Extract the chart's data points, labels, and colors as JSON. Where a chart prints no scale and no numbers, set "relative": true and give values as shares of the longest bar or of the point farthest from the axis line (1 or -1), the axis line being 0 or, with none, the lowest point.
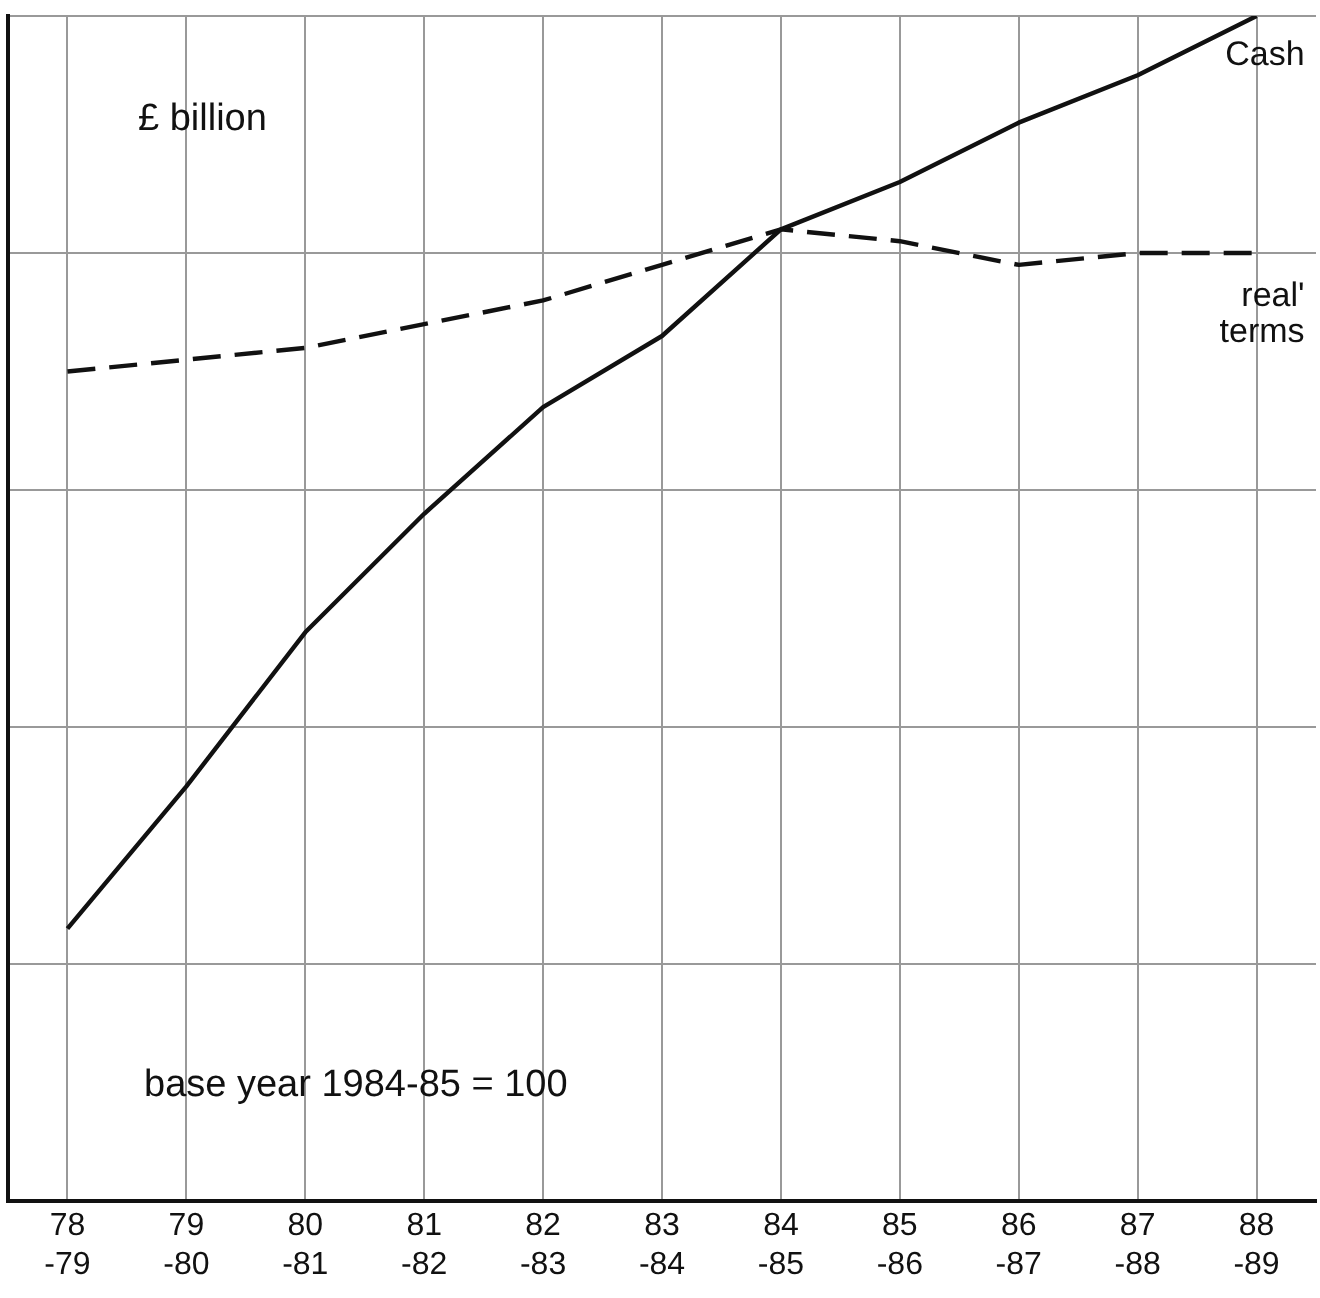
{
  "chart_data": {
    "type": "line",
    "relative": true,
    "categories": [
      "78-79",
      "79-80",
      "80-81",
      "81-82",
      "82-83",
      "83-84",
      "84-85",
      "85-86",
      "86-87",
      "87-88",
      "88-89"
    ],
    "series": [
      {
        "name": "Cash",
        "color": "#111111",
        "values": [
          0.23,
          0.35,
          0.48,
          0.58,
          0.67,
          0.73,
          0.82,
          0.86,
          0.91,
          0.95,
          1
        ]
      },
      {
        "name": "real' terms",
        "color": "#111111",
        "line_style": "dashed",
        "values": [
          0.7,
          0.71,
          0.72,
          0.74,
          0.76,
          0.79,
          0.82,
          0.81,
          0.79,
          0.8,
          0.8
        ]
      }
    ],
    "annotations": [
      "£ billion",
      "base year 1984-85 = 100"
    ],
    "grid": true,
    "legend": false,
    "marker": "none",
    "line_style": "solid"
  }
}
